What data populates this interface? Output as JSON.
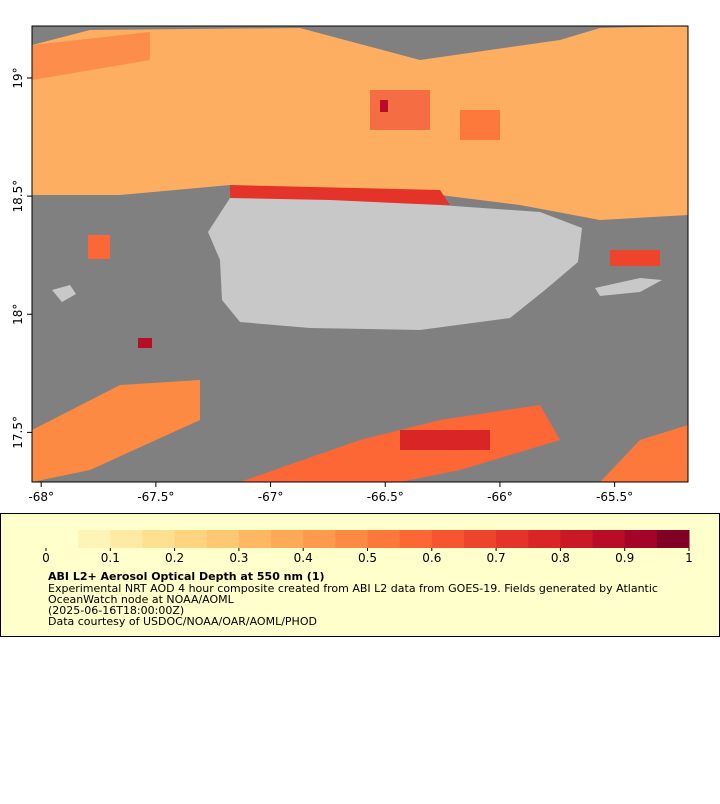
{
  "map": {
    "xlim": [
      -68.04,
      -65.18
    ],
    "ylim": [
      17.29,
      19.22
    ],
    "xticks": [
      {
        "value": -68,
        "label": "-68°"
      },
      {
        "value": -67.5,
        "label": "-67.5°"
      },
      {
        "value": -67,
        "label": "-67°"
      },
      {
        "value": -66.5,
        "label": "-66.5°"
      },
      {
        "value": -66,
        "label": "-66°"
      },
      {
        "value": -65.5,
        "label": "-65.5°"
      }
    ],
    "yticks": [
      {
        "value": 17.5,
        "label": "17.5°"
      },
      {
        "value": 18,
        "label": "18°"
      },
      {
        "value": 18.5,
        "label": "18.5°"
      },
      {
        "value": 19,
        "label": "19°"
      }
    ]
  },
  "colorbar": {
    "lim": [
      0,
      1
    ],
    "ticks": [
      0,
      0.1,
      0.2,
      0.3,
      0.4,
      0.5,
      0.6,
      0.7,
      0.8,
      0.9,
      1
    ],
    "colors": [
      "#ffffcc",
      "#fff3b8",
      "#ffeaa5",
      "#fee092",
      "#fed481",
      "#fec771",
      "#feb863",
      "#fea956",
      "#fd9a4b",
      "#fd8a42",
      "#fc793b",
      "#fc6735",
      "#f65530",
      "#ee442c",
      "#e43328",
      "#d92525",
      "#ca1826",
      "#b90d27",
      "#a30427",
      "#800026"
    ]
  },
  "caption": {
    "title": "ABI L2+ Aerosol Optical Depth at 550 nm (1)",
    "lines": [
      "Experimental NRT AOD 4 hour composite created from ABI L2 data from GOES-19. Fields generated by Atlantic",
      "OceanWatch node at NOAA/AOML",
      "(2025-06-16T18:00:00Z)",
      "Data courtesy of USDOC/NOAA/OAR/AOML/PHOD"
    ]
  }
}
